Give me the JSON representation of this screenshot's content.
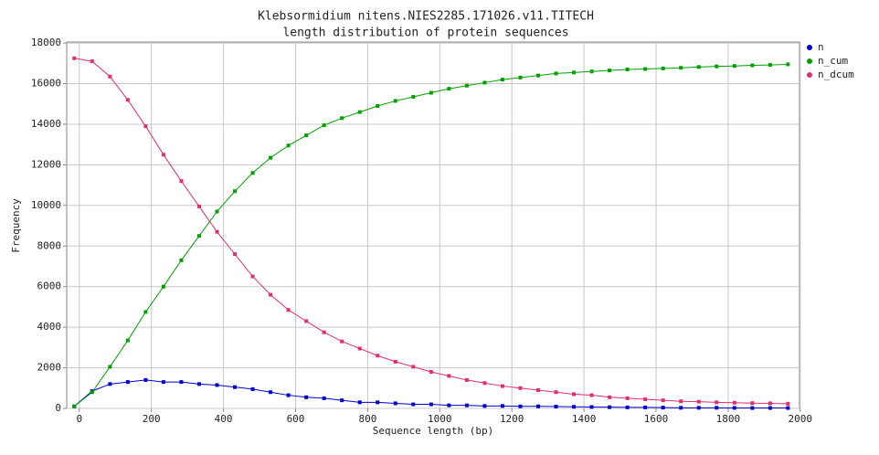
{
  "chart_data": {
    "type": "line",
    "title": "Klebsormidium nitens.NIES2285.171026.v11.TITECH",
    "subtitle": "length distribution of protein sequences",
    "x_label": "Sequence length (bp)",
    "y_label": "Frequency",
    "x": [
      -14,
      35.5,
      85,
      134.5,
      184,
      233.5,
      283,
      332.5,
      382,
      431.5,
      481,
      530.5,
      580,
      629.5,
      679,
      728.5,
      778,
      827.5,
      877,
      926.5,
      976,
      1025.5,
      1075,
      1124.5,
      1174,
      1223.5,
      1273,
      1322.5,
      1372,
      1421.5,
      1471,
      1520.5,
      1570,
      1619.5,
      1669,
      1718.5,
      1768,
      1817.5,
      1867,
      1916.5,
      1966
    ],
    "series": [
      {
        "name": "n",
        "color": "#0000cc",
        "values": [
          100,
          850,
          1200,
          1300,
          1400,
          1300,
          1300,
          1200,
          1150,
          1050,
          950,
          800,
          650,
          550,
          500,
          400,
          300,
          300,
          250,
          200,
          200,
          150,
          150,
          120,
          120,
          100,
          100,
          90,
          80,
          70,
          60,
          50,
          50,
          40,
          30,
          30,
          30,
          25,
          20,
          20,
          20
        ]
      },
      {
        "name": "n_cum",
        "color": "#00a000",
        "values": [
          100,
          800,
          2050,
          3350,
          4750,
          6000,
          7300,
          8500,
          9700,
          10700,
          11600,
          12350,
          12950,
          13450,
          13950,
          14300,
          14600,
          14900,
          15150,
          15350,
          15550,
          15750,
          15900,
          16050,
          16200,
          16300,
          16400,
          16500,
          16550,
          16600,
          16650,
          16700,
          16720,
          16750,
          16780,
          16820,
          16850,
          16870,
          16900,
          16920,
          16950
        ]
      },
      {
        "name": "n_dcum",
        "color": "#e0306a",
        "values": [
          17250,
          17100,
          16350,
          15200,
          13900,
          12500,
          11200,
          9950,
          8700,
          7600,
          6500,
          5600,
          4850,
          4300,
          3750,
          3300,
          2950,
          2600,
          2300,
          2050,
          1800,
          1600,
          1400,
          1250,
          1100,
          1000,
          900,
          800,
          700,
          650,
          550,
          500,
          450,
          400,
          350,
          330,
          300,
          280,
          260,
          250,
          230
        ]
      }
    ],
    "xlim": [
      -35,
      1998
    ],
    "xticks": [
      0,
      200,
      400,
      600,
      800,
      1000,
      1200,
      1400,
      1600,
      1800,
      2000
    ],
    "ylim": [
      0,
      18050
    ],
    "yticks": [
      0,
      2000,
      4000,
      6000,
      8000,
      10000,
      12000,
      14000,
      16000,
      18000
    ],
    "grid": true,
    "legend": "right"
  }
}
